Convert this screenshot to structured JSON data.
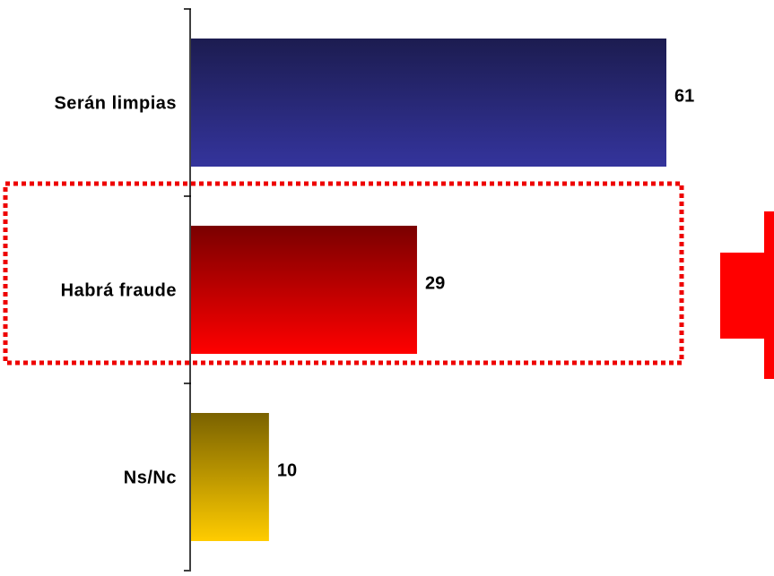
{
  "chart_data": {
    "type": "bar",
    "orientation": "horizontal",
    "title": "",
    "xlabel": "",
    "ylabel": "",
    "categories": [
      "Serán limpias",
      "Habrá fraude",
      "Ns/Nc"
    ],
    "values": [
      61,
      29,
      10
    ],
    "xlim": [
      0,
      61
    ],
    "grid": false,
    "legend": "none",
    "bar_gradients": [
      {
        "top": "#1c1c50",
        "bottom": "#34349c"
      },
      {
        "top": "#7a0000",
        "bottom": "#ff0000"
      },
      {
        "top": "#7a6200",
        "bottom": "#ffcc00"
      }
    ],
    "highlight_category": "Habrá fraude",
    "highlight_color": "#ee0000",
    "arrow_icon": "right-arrow-icon",
    "arrow_color": "#ff0000"
  }
}
